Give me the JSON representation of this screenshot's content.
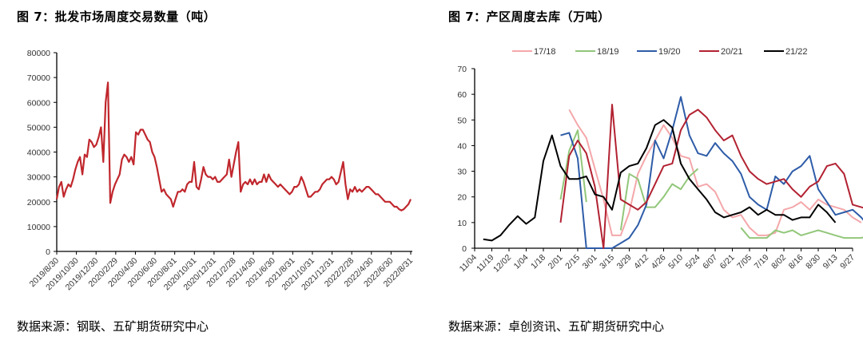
{
  "left": {
    "title": "图 7：批发市场周度交易数量（吨）",
    "source": "数据来源：钢联、五矿期货研究中心"
  },
  "right": {
    "title": "图 7：产区周度去库（万吨）",
    "source": "数据来源：卓创资讯、五矿期货研究中心"
  },
  "chart_data": [
    {
      "type": "line",
      "title": "批发市场周度交易数量（吨）",
      "xlabel": "",
      "ylabel": "",
      "ylim": [
        0,
        80000
      ],
      "yticks": [
        0,
        10000,
        20000,
        30000,
        40000,
        50000,
        60000,
        70000,
        80000
      ],
      "categories": [
        "2019/8/30",
        "2019/10/30",
        "2019/12/30",
        "2020/2/29",
        "2020/4/30",
        "2020/6/30",
        "2020/8/31",
        "2020/10/31",
        "2020/12/31",
        "2021/2/28",
        "2021/4/30",
        "2021/6/30",
        "2021/8/31",
        "2021/10/31",
        "2021/12/31",
        "2022/2/28",
        "2022/4/30",
        "2022/6/30",
        "2022/8/31"
      ],
      "grid": false,
      "legend": "none",
      "series": [
        {
          "name": "批发市场周度交易数量",
          "color": "#c0272d",
          "values": [
            21000,
            26000,
            28000,
            22000,
            25000,
            27000,
            26000,
            29000,
            33000,
            36000,
            38000,
            31000,
            39000,
            38000,
            45000,
            44000,
            42000,
            43000,
            46000,
            50000,
            36000,
            60000,
            68000,
            19500,
            24000,
            27000,
            29000,
            31000,
            37000,
            39000,
            38000,
            36000,
            38000,
            35000,
            48000,
            47000,
            49000,
            49000,
            47000,
            45000,
            44000,
            40000,
            38000,
            34000,
            29000,
            24000,
            25000,
            23000,
            22000,
            21000,
            18000,
            21000,
            24000,
            24000,
            25000,
            24000,
            27000,
            28000,
            28000,
            36000,
            26000,
            25000,
            29000,
            34000,
            31000,
            30000,
            30000,
            29000,
            30000,
            28000,
            28000,
            29000,
            30000,
            31000,
            37000,
            30000,
            35000,
            40000,
            44000,
            24000,
            27000,
            28000,
            27000,
            29000,
            27000,
            29000,
            27000,
            28000,
            28000,
            31000,
            28000,
            31000,
            29000,
            28000,
            27000,
            26000,
            27000,
            26000,
            25000,
            24000,
            23000,
            24000,
            26000,
            26000,
            27000,
            30000,
            28000,
            25000,
            22000,
            22000,
            23000,
            24000,
            24000,
            25000,
            27000,
            28000,
            29000,
            29000,
            30000,
            29000,
            27000,
            28000,
            32000,
            36000,
            27000,
            21000,
            25000,
            24000,
            26000,
            24000,
            25000,
            24000,
            25000,
            26000,
            26000,
            25000,
            24000,
            23000,
            23000,
            22000,
            21000,
            20000,
            20000,
            20000,
            19000,
            18000,
            18000,
            17000,
            16500,
            17000,
            18000,
            19000,
            21000
          ]
        }
      ]
    },
    {
      "type": "line",
      "title": "产区周度去库（万吨）",
      "xlabel": "",
      "ylabel": "",
      "ylim": [
        0,
        70
      ],
      "yticks": [
        0,
        10,
        20,
        30,
        40,
        50,
        60,
        70
      ],
      "categories": [
        "11/04",
        "11/19",
        "12/02",
        "1/04",
        "1/18",
        "2/01",
        "2/15",
        "3/01",
        "3/15",
        "3/29",
        "4/12",
        "4/26",
        "5/10",
        "5/24",
        "6/07",
        "6/21",
        "7/05",
        "7/19",
        "8/02",
        "8/16",
        "8/30",
        "9/13",
        "9/27"
      ],
      "grid": false,
      "legend": "top",
      "points_per_label": 2,
      "series": [
        {
          "name": "17/18",
          "color": "#f4a7aa",
          "values": [
            null,
            null,
            null,
            null,
            null,
            null,
            null,
            null,
            null,
            null,
            null,
            54,
            48,
            43,
            31,
            19,
            5,
            5,
            14,
            29,
            36,
            42,
            48,
            43,
            36,
            35,
            24,
            25,
            22,
            15,
            12,
            13,
            8,
            5,
            5,
            6,
            15,
            16,
            18,
            15,
            19,
            17,
            16,
            15,
            12,
            10
          ]
        },
        {
          "name": "18/19",
          "color": "#92c77a",
          "values": [
            null,
            null,
            null,
            null,
            null,
            null,
            null,
            null,
            null,
            null,
            19,
            38,
            46,
            18,
            null,
            null,
            null,
            7,
            29,
            27,
            16,
            16,
            20,
            25,
            23,
            28,
            31,
            null,
            null,
            null,
            null,
            8,
            4,
            4,
            4,
            7,
            6,
            7,
            5,
            6,
            7,
            6,
            5,
            4,
            4,
            4,
            5,
            5,
            7,
            12,
            12,
            11
          ]
        },
        {
          "name": "19/20",
          "color": "#2e5ca8",
          "values": [
            null,
            null,
            null,
            null,
            null,
            null,
            null,
            null,
            null,
            null,
            44,
            45,
            35,
            0,
            0,
            0,
            0,
            2,
            4,
            9,
            17,
            42,
            35,
            46,
            59,
            44,
            37,
            36,
            41,
            37,
            34,
            29,
            20,
            17,
            15,
            28,
            25,
            30,
            32,
            36,
            23,
            18,
            13,
            14,
            15,
            12,
            8
          ]
        },
        {
          "name": "20/21",
          "color": "#b22232",
          "values": [
            null,
            null,
            null,
            null,
            null,
            null,
            null,
            null,
            null,
            null,
            10,
            36,
            42,
            37,
            24,
            0,
            56,
            19,
            17,
            15,
            18,
            25,
            32,
            33,
            46,
            52,
            54,
            51,
            46,
            42,
            44,
            36,
            30,
            27,
            25,
            26,
            27,
            23,
            20,
            24,
            26,
            32,
            33,
            29,
            17,
            16,
            15,
            12,
            11,
            10
          ]
        },
        {
          "name": "21/22",
          "color": "#000000",
          "values": [
            null,
            3.5,
            3,
            5,
            9,
            12.5,
            9.5,
            12,
            34,
            44,
            32,
            27,
            27,
            28,
            21,
            20,
            15,
            29.5,
            32,
            33,
            39,
            48,
            50,
            47,
            33,
            27,
            23,
            19,
            14,
            12,
            13,
            14,
            16,
            13,
            15,
            13,
            13,
            11,
            12,
            12,
            17,
            14,
            10
          ]
        }
      ]
    }
  ]
}
